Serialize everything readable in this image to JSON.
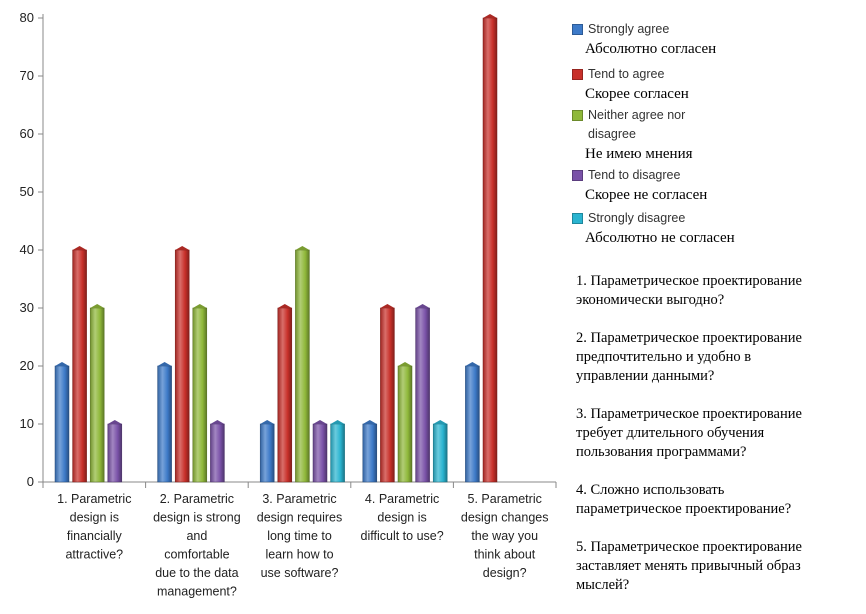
{
  "chart_data": {
    "type": "bar",
    "categories": [
      "1. Parametric design is financially attractive?",
      "2. Parametric design is strong and comfortable due to the data management?",
      "3. Parametric design requires long time to learn how to use software?",
      "4. Parametric design is difficult to use?",
      "5. Parametric design changes the way you think about design?"
    ],
    "category_lines": [
      [
        "1. Parametric",
        "design is",
        "financially",
        "attractive?"
      ],
      [
        "2. Parametric",
        "design is strong",
        "and",
        "comfortable",
        "due to the data",
        "management?"
      ],
      [
        "3. Parametric",
        "design requires",
        "long time to",
        "learn how to",
        "use software?"
      ],
      [
        "4. Parametric",
        "design is",
        "difficult to use?"
      ],
      [
        "5. Parametric",
        "design changes",
        "the way you",
        "think about",
        "design?"
      ]
    ],
    "series": [
      {
        "name": "Strongly agree",
        "color": "#3d7ac8",
        "values": [
          20,
          20,
          10,
          10,
          20
        ]
      },
      {
        "name": "Tend to agree",
        "color": "#c8302a",
        "values": [
          40,
          40,
          30,
          30,
          80
        ]
      },
      {
        "name": "Neither agree nor disagree",
        "color": "#8fb83a",
        "values": [
          30,
          30,
          40,
          20,
          0
        ]
      },
      {
        "name": "Tend to disagree",
        "color": "#7a52a8",
        "values": [
          10,
          10,
          10,
          30,
          0
        ]
      },
      {
        "name": "Strongly disagree",
        "color": "#2ab4d0",
        "values": [
          0,
          0,
          10,
          10,
          0
        ]
      }
    ],
    "ylim": [
      0,
      80
    ],
    "yticks": [
      0,
      10,
      20,
      30,
      40,
      50,
      60,
      70,
      80
    ],
    "grid": false,
    "legend_position": "right"
  },
  "legend": [
    {
      "en_lines": [
        "Strongly agree"
      ],
      "ru": "Абсолютно согласен"
    },
    {
      "en_lines": [
        "Tend to agree"
      ],
      "ru": "Скорее согласен"
    },
    {
      "en_lines": [
        "Neither agree nor",
        "disagree"
      ],
      "ru": "Не имею мнения"
    },
    {
      "en_lines": [
        "Tend to disagree"
      ],
      "ru": "Скорее не согласен"
    },
    {
      "en_lines": [
        "Strongly disagree"
      ],
      "ru": "Абсолютно не согласен"
    }
  ],
  "questions": [
    [
      "1. Параметрическое проектирование",
      "экономически выгодно?"
    ],
    [
      "2. Параметрическое проектирование",
      "предпочтительно и удобно в",
      "управлении данными?"
    ],
    [
      "3. Параметрическое проектирование",
      "требует длительного обучения",
      "пользования программами?"
    ],
    [
      "4. Сложно использовать",
      "параметрическое проектирование?"
    ],
    [
      "5. Параметрическое проектирование",
      "заставляет менять привычный образ",
      "мыслей?"
    ]
  ]
}
